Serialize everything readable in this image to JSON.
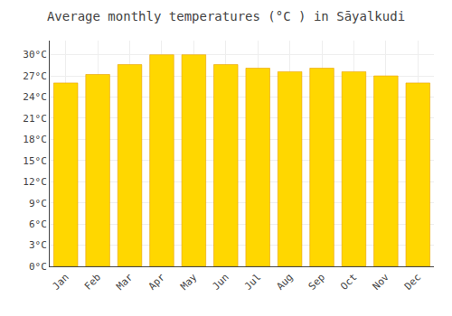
{
  "chart_data": {
    "type": "bar",
    "title": "Average monthly temperatures (°C ) in Sāyalkudi",
    "categories": [
      "Jan",
      "Feb",
      "Mar",
      "Apr",
      "May",
      "Jun",
      "Jul",
      "Aug",
      "Sep",
      "Oct",
      "Nov",
      "Dec"
    ],
    "values": [
      26.0,
      27.2,
      28.6,
      30.0,
      30.0,
      28.6,
      28.1,
      27.6,
      28.1,
      27.6,
      27.0,
      26.0
    ],
    "color": "#FFD700",
    "ylim": [
      0,
      32
    ],
    "yticks": [
      {
        "value": 0,
        "label": "0°C"
      },
      {
        "value": 3,
        "label": "3°C"
      },
      {
        "value": 6,
        "label": "6°C"
      },
      {
        "value": 9,
        "label": "9°C"
      },
      {
        "value": 12,
        "label": "12°C"
      },
      {
        "value": 15,
        "label": "15°C"
      },
      {
        "value": 18,
        "label": "18°C"
      },
      {
        "value": 21,
        "label": "21°C"
      },
      {
        "value": 24,
        "label": "24°C"
      },
      {
        "value": 27,
        "label": "27°C"
      },
      {
        "value": 30,
        "label": "30°C"
      }
    ],
    "grid": true
  }
}
